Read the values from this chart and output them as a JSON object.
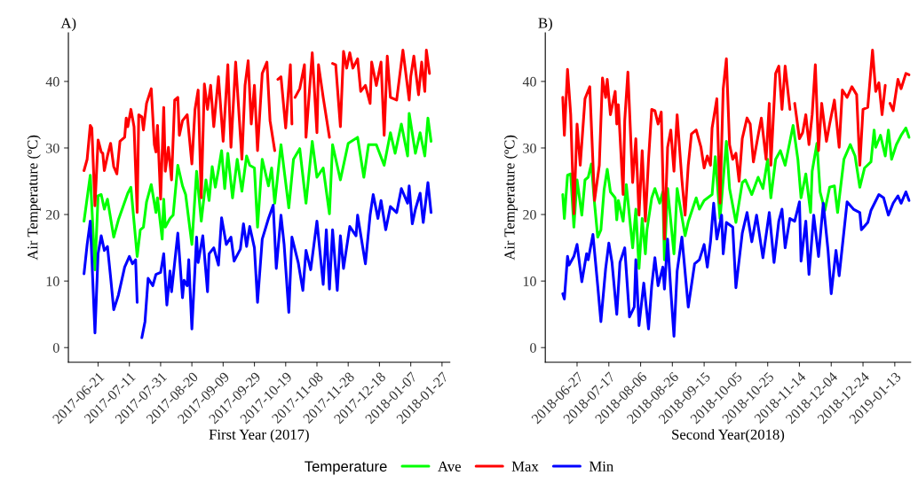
{
  "chart_data": [
    {
      "type": "line",
      "title": "A)",
      "xlabel": "First Year (2017)",
      "ylabel": "Air Temperature (ºC)",
      "xlim": [
        "2017-06-02",
        "2018-02-01"
      ],
      "xticks": [
        "2017-06-21",
        "2017-07-11",
        "2017-07-31",
        "2017-08-20",
        "2017-09-09",
        "2017-09-29",
        "2017-10-19",
        "2017-11-08",
        "2017-11-28",
        "2017-12-18",
        "2018-01-07",
        "2018-01-27"
      ],
      "ylim": [
        -2.2,
        47.3
      ],
      "yticks": [
        0,
        10,
        20,
        30,
        40
      ],
      "grid": false,
      "marker": "none",
      "line_style": "solid",
      "legend": "bottom",
      "legend_title": "Temperature",
      "series": [
        {
          "name": "Ave",
          "color": "#00ff00",
          "x": [
            "2017-06-12",
            "2017-06-16",
            "2017-06-19",
            "2017-06-21",
            "2017-06-23",
            "2017-06-25",
            "2017-06-27",
            "2017-07-01",
            "2017-07-04",
            "2017-07-07",
            "2017-07-10",
            "2017-07-12",
            "2017-07-16",
            "2017-07-18",
            "2017-07-20",
            "2017-07-22",
            "2017-07-25",
            "2017-07-28",
            "2017-07-29",
            "2017-08-01",
            "2017-08-02",
            "2017-08-03",
            "2017-08-06",
            "2017-08-08",
            "2017-08-11",
            "2017-08-14",
            "2017-08-16",
            "2017-08-20",
            "2017-08-23",
            "2017-08-26",
            "2017-08-29",
            "2017-08-31",
            "2017-09-02",
            "2017-09-04",
            "2017-09-06",
            "2017-09-08",
            "2017-09-10",
            "2017-09-12",
            "2017-09-15",
            "2017-09-18",
            "2017-09-21",
            "2017-09-24",
            "2017-09-26",
            "2017-09-29",
            "2017-10-01",
            "2017-10-04",
            "2017-10-08",
            "2017-10-10",
            "2017-10-12",
            "2017-10-16",
            "2017-10-21",
            "2017-10-24",
            "2017-10-28",
            "2017-11-01",
            "2017-11-05",
            "2017-11-08",
            "2017-11-12",
            "2017-11-16",
            "2017-11-18",
            "2017-11-23",
            "2017-11-28",
            "2017-12-04",
            "2017-12-08",
            "2017-12-11",
            "2017-12-16",
            "2017-12-21",
            "2017-12-25",
            "2017-12-28",
            "2018-01-01",
            "2018-01-05",
            "2018-01-06",
            "2018-01-10",
            "2018-01-13",
            "2018-01-16",
            "2018-01-18",
            "2018-01-20"
          ],
          "values": [
            19,
            25.9,
            11.7,
            22.8,
            23,
            20.8,
            22.3,
            16.6,
            19.2,
            21.2,
            23.2,
            24.1,
            13.7,
            17.7,
            18.1,
            21.9,
            24.5,
            20.3,
            22.5,
            16.3,
            22.3,
            18.1,
            19.4,
            19.9,
            27.4,
            24.3,
            23,
            15.5,
            26.5,
            19,
            25.2,
            22.1,
            27.2,
            24.1,
            26.7,
            29.6,
            23.9,
            29.2,
            22.5,
            28.3,
            23.5,
            28.8,
            27.4,
            27,
            18.1,
            28.3,
            24.3,
            27,
            21.7,
            30.5,
            21,
            28.3,
            29.9,
            21.7,
            31,
            25.6,
            27,
            20.1,
            30.5,
            25.2,
            30.7,
            31.6,
            25.6,
            30.5,
            30.5,
            27.4,
            32.3,
            29.2,
            33.6,
            28.8,
            35.2,
            29.2,
            32.3,
            28.8,
            34.5,
            31
          ]
        },
        {
          "name": "Max",
          "color": "#ff0000",
          "x": [
            "2017-06-12",
            "2017-06-14",
            "2017-06-16",
            "2017-06-17",
            "2017-06-19",
            "2017-06-21",
            "2017-06-23",
            "2017-06-24",
            "2017-06-25",
            "2017-06-27",
            "2017-06-29",
            "2017-07-01",
            "2017-07-03",
            "2017-07-05",
            "2017-07-08",
            "2017-07-09",
            "2017-07-10",
            "2017-07-12",
            "2017-07-14",
            "2017-07-16",
            "2017-07-17",
            "2017-07-19",
            "2017-07-20",
            "2017-07-22",
            "2017-07-25",
            "2017-07-27",
            "2017-07-28",
            "2017-07-29",
            "2017-07-31",
            "2017-08-02",
            "2017-08-03",
            "2017-08-05",
            "2017-08-07",
            "2017-08-09",
            "2017-08-11",
            "2017-08-12",
            "2017-08-14",
            "2017-08-17",
            "2017-08-20",
            "2017-08-22",
            "2017-08-24",
            "2017-08-26",
            "2017-08-28",
            "2017-08-30",
            "2017-09-01",
            "2017-09-03",
            "2017-09-06",
            "2017-09-09",
            "2017-09-12",
            "2017-09-14",
            "2017-09-17",
            "2017-09-21",
            "2017-09-23",
            "2017-09-25",
            "2017-09-27",
            "2017-09-29",
            "2017-10-01",
            "2017-10-04",
            "2017-10-07",
            "2017-10-09",
            "2017-10-12",
            "2017-10-13",
            "2017-10-14",
            "2017-10-16",
            "2017-10-19",
            "2017-10-22",
            "2017-10-23",
            "2017-10-24",
            "2017-10-25",
            "2017-10-28",
            "2017-10-31",
            "2017-11-01",
            "2017-11-05",
            "2017-11-08",
            "2017-11-09",
            "2017-11-12",
            "2017-11-16",
            "2017-11-17",
            "2017-11-18",
            "2017-11-20",
            "2017-11-23",
            "2017-11-25",
            "2017-11-27",
            "2017-11-29",
            "2017-12-01",
            "2017-12-04",
            "2017-12-06",
            "2017-12-09",
            "2017-12-12",
            "2017-12-13",
            "2017-12-16",
            "2017-12-19",
            "2017-12-21",
            "2017-12-23",
            "2017-12-25",
            "2017-12-29",
            "2018-01-02",
            "2018-01-06",
            "2018-01-07",
            "2018-01-09",
            "2018-01-12",
            "2018-01-14",
            "2018-01-16",
            "2018-01-17",
            "2018-01-19"
          ],
          "values": [
            26.6,
            28.3,
            33.4,
            33,
            21.3,
            31.2,
            29.4,
            29.2,
            26.6,
            28.8,
            30.7,
            27.2,
            26.1,
            31,
            31.6,
            34.5,
            33.2,
            35.8,
            33.2,
            20.3,
            35,
            34.7,
            32.7,
            36.7,
            38.9,
            30.5,
            29.4,
            33.4,
            22.3,
            36.1,
            26.5,
            30.1,
            25.2,
            37.2,
            37.6,
            31.9,
            34.1,
            35,
            27.6,
            35.8,
            38.7,
            22.5,
            39.6,
            35.8,
            39.4,
            33.2,
            40.7,
            31,
            42.5,
            30.1,
            42.9,
            28.3,
            39.4,
            43.1,
            33.6,
            39.4,
            29.6,
            41.2,
            42.9,
            34.1,
            29.6,
            null,
            40.3,
            40.7,
            33,
            42.5,
            33.6,
            null,
            37.6,
            38.9,
            42.5,
            31.6,
            44.3,
            32.3,
            42.5,
            37.6,
            31.6,
            null,
            42.7,
            42.5,
            33.2,
            44.5,
            42,
            44.3,
            42,
            43.4,
            38.5,
            39.4,
            36.7,
            42.9,
            39.4,
            42.9,
            31.9,
            43.8,
            37.6,
            37.2,
            44.7,
            37.2,
            40.7,
            43.8,
            38,
            42.9,
            38.5,
            44.7,
            41.2
          ]
        },
        {
          "name": "Min",
          "color": "#0000ff",
          "x": [
            "2017-06-12",
            "2017-06-14",
            "2017-06-16",
            "2017-06-19",
            "2017-06-21",
            "2017-06-23",
            "2017-06-25",
            "2017-06-27",
            "2017-06-29",
            "2017-07-01",
            "2017-07-04",
            "2017-07-08",
            "2017-07-11",
            "2017-07-13",
            "2017-07-15",
            "2017-07-16",
            "2017-07-17",
            "2017-07-19",
            "2017-07-21",
            "2017-07-23",
            "2017-07-26",
            "2017-07-28",
            "2017-07-31",
            "2017-08-02",
            "2017-08-04",
            "2017-08-06",
            "2017-08-07",
            "2017-08-09",
            "2017-08-11",
            "2017-08-14",
            "2017-08-15",
            "2017-08-17",
            "2017-08-18",
            "2017-08-20",
            "2017-08-23",
            "2017-08-24",
            "2017-08-27",
            "2017-08-30",
            "2017-08-31",
            "2017-09-03",
            "2017-09-06",
            "2017-09-08",
            "2017-09-11",
            "2017-09-14",
            "2017-09-16",
            "2017-09-20",
            "2017-09-22",
            "2017-09-24",
            "2017-09-26",
            "2017-09-29",
            "2017-10-01",
            "2017-10-04",
            "2017-10-08",
            "2017-10-11",
            "2017-10-13",
            "2017-10-16",
            "2017-10-18",
            "2017-10-21",
            "2017-10-23",
            "2017-10-27",
            "2017-10-30",
            "2017-11-01",
            "2017-11-04",
            "2017-11-08",
            "2017-11-12",
            "2017-11-14",
            "2017-11-16",
            "2017-11-18",
            "2017-11-21",
            "2017-11-23",
            "2017-11-25",
            "2017-11-29",
            "2017-12-03",
            "2017-12-04",
            "2017-12-09",
            "2017-12-12",
            "2017-12-14",
            "2017-12-17",
            "2017-12-19",
            "2017-12-22",
            "2017-12-25",
            "2017-12-29",
            "2018-01-01",
            "2018-01-05",
            "2018-01-06",
            "2018-01-08",
            "2018-01-10",
            "2018-01-13",
            "2018-01-15",
            "2018-01-18",
            "2018-01-20"
          ],
          "values": [
            11.1,
            15.5,
            19,
            2.2,
            14.1,
            16.8,
            14.6,
            15.2,
            10.6,
            5.7,
            7.9,
            12.1,
            13.7,
            12.6,
            13.2,
            6.8,
            null,
            1.5,
            3.9,
            10.4,
            9.3,
            11,
            11.3,
            14.1,
            6.4,
            11.5,
            8.4,
            12.8,
            17.2,
            7.5,
            10.1,
            9.3,
            13.2,
            2.8,
            16.6,
            12.8,
            16.8,
            8.4,
            14.1,
            15,
            12.4,
            19.5,
            15.5,
            16.6,
            13,
            14.8,
            18.6,
            15.2,
            18.2,
            15,
            6.8,
            16.3,
            19.4,
            21.4,
            11.9,
            19.9,
            15.5,
            5.3,
            16.6,
            12.8,
            8.6,
            14.6,
            11.7,
            19,
            9.5,
            17.7,
            8.8,
            17.7,
            8.6,
            16.8,
            11.9,
            18.2,
            16.8,
            19.9,
            12.6,
            19.9,
            23,
            19.4,
            22.1,
            17.7,
            21.2,
            20.3,
            23.9,
            21.7,
            24.3,
            18.6,
            20.8,
            23.2,
            18.8,
            24.8,
            20.3
          ]
        }
      ]
    },
    {
      "type": "line",
      "title": "B)",
      "xlabel": "Second Year(2018)",
      "ylabel": "Air Temperature (ºC)",
      "xlim": [
        "2018-06-07",
        "2019-01-23"
      ],
      "xticks": [
        "2018-06-27",
        "2018-07-17",
        "2018-08-06",
        "2018-08-26",
        "2018-09-15",
        "2018-10-05",
        "2018-10-25",
        "2018-11-14",
        "2018-12-04",
        "2018-12-24",
        "2019-01-13"
      ],
      "ylim": [
        -2.2,
        47.3
      ],
      "yticks": [
        0,
        10,
        20,
        30,
        40
      ],
      "grid": false,
      "marker": "none",
      "line_style": "solid",
      "series": [
        {
          "color": "#00ff00",
          "x": [
            "2018-06-18",
            "2018-06-19",
            "2018-06-21",
            "2018-06-23",
            "2018-06-25",
            "2018-06-27",
            "2018-06-30",
            "2018-07-02",
            "2018-07-04",
            "2018-07-06",
            "2018-07-08",
            "2018-07-10",
            "2018-07-12",
            "2018-07-14",
            "2018-07-16",
            "2018-07-18",
            "2018-07-21",
            "2018-07-22",
            "2018-07-23",
            "2018-07-26",
            "2018-07-28",
            "2018-08-01",
            "2018-08-03",
            "2018-08-05",
            "2018-08-07",
            "2018-08-09",
            "2018-08-10",
            "2018-08-13",
            "2018-08-15",
            "2018-08-18",
            "2018-08-20",
            "2018-08-21",
            "2018-08-23",
            "2018-08-27",
            "2018-08-29",
            "2018-09-03",
            "2018-09-05",
            "2018-09-10",
            "2018-09-12",
            "2018-09-15",
            "2018-09-20",
            "2018-09-22",
            "2018-09-25",
            "2018-09-29",
            "2018-10-01",
            "2018-10-05",
            "2018-10-09",
            "2018-10-11",
            "2018-10-15",
            "2018-10-19",
            "2018-10-22",
            "2018-10-25",
            "2018-10-27",
            "2018-10-30",
            "2018-11-02",
            "2018-11-05",
            "2018-11-10",
            "2018-11-13",
            "2018-11-15",
            "2018-11-18",
            "2018-11-21",
            "2018-11-22",
            "2018-11-25",
            "2018-11-27",
            "2018-11-30",
            "2018-12-03",
            "2018-12-06",
            "2018-12-08",
            "2018-12-12",
            "2018-12-16",
            "2018-12-19",
            "2018-12-22",
            "2018-12-25",
            "2018-12-29",
            "2018-12-31",
            "2019-01-01",
            "2019-01-04",
            "2019-01-07",
            "2019-01-09",
            "2019-01-11",
            "2019-01-14",
            "2019-01-17",
            "2019-01-20",
            "2019-01-22"
          ],
          "values": [
            23,
            19.4,
            25.9,
            26.1,
            18.1,
            25.2,
            19.9,
            25.2,
            25.6,
            27.6,
            21.7,
            16.6,
            17.7,
            23.7,
            26.8,
            23.4,
            22.5,
            19.2,
            22.1,
            19,
            24.5,
            15,
            20.8,
            11.9,
            19.4,
            14.1,
            17.7,
            22.5,
            23.9,
            21.7,
            23.4,
            13.2,
            23.9,
            14.1,
            23.9,
            16.8,
            18.9,
            22.5,
            20.8,
            22.1,
            23,
            28.7,
            19.4,
            31,
            23.9,
            18.8,
            24.8,
            25.2,
            23,
            25.6,
            23.9,
            28.3,
            22.5,
            28.3,
            29.6,
            27.4,
            33.4,
            28.3,
            22.5,
            26.1,
            20.3,
            26.5,
            30.7,
            23.4,
            20.6,
            24.1,
            24.3,
            20.3,
            28.3,
            30.5,
            28.8,
            24.1,
            27,
            27.9,
            32.7,
            30.1,
            31.9,
            28.8,
            32.7,
            28.3,
            30.5,
            31.9,
            33,
            31.6
          ]
        },
        {
          "color": "#ff0000",
          "x": [
            "2018-06-18",
            "2018-06-19",
            "2018-06-21",
            "2018-06-23",
            "2018-06-25",
            "2018-06-27",
            "2018-06-29",
            "2018-07-02",
            "2018-07-05",
            "2018-07-08",
            "2018-07-11",
            "2018-07-13",
            "2018-07-15",
            "2018-07-16",
            "2018-07-18",
            "2018-07-21",
            "2018-07-22",
            "2018-07-23",
            "2018-07-26",
            "2018-07-27",
            "2018-07-29",
            "2018-08-01",
            "2018-08-03",
            "2018-08-05",
            "2018-08-07",
            "2018-08-09",
            "2018-08-11",
            "2018-08-13",
            "2018-08-15",
            "2018-08-17",
            "2018-08-19",
            "2018-08-21",
            "2018-08-23",
            "2018-08-25",
            "2018-08-27",
            "2018-08-29",
            "2018-09-01",
            "2018-09-03",
            "2018-09-05",
            "2018-09-07",
            "2018-09-10",
            "2018-09-13",
            "2018-09-15",
            "2018-09-17",
            "2018-09-19",
            "2018-09-20",
            "2018-09-23",
            "2018-09-25",
            "2018-09-27",
            "2018-09-29",
            "2018-10-01",
            "2018-10-03",
            "2018-10-05",
            "2018-10-07",
            "2018-10-09",
            "2018-10-12",
            "2018-10-14",
            "2018-10-16",
            "2018-10-19",
            "2018-10-21",
            "2018-10-24",
            "2018-10-26",
            "2018-10-27",
            "2018-10-30",
            "2018-11-01",
            "2018-11-03",
            "2018-11-05",
            "2018-11-08",
            "2018-11-09",
            "2018-11-11",
            "2018-11-14",
            "2018-11-16",
            "2018-11-18",
            "2018-11-20",
            "2018-11-22",
            "2018-11-24",
            "2018-11-26",
            "2018-11-28",
            "2018-12-01",
            "2018-12-03",
            "2018-12-06",
            "2018-12-09",
            "2018-12-11",
            "2018-12-14",
            "2018-12-17",
            "2018-12-20",
            "2018-12-22",
            "2018-12-24",
            "2018-12-27",
            "2018-12-30",
            "2019-01-01",
            "2019-01-03",
            "2019-01-05",
            "2019-01-07",
            "2019-01-08",
            "2019-01-10",
            "2019-01-12",
            "2019-01-15",
            "2019-01-17",
            "2019-01-20",
            "2019-01-22"
          ],
          "values": [
            37.6,
            31.9,
            41.8,
            35,
            20.1,
            33.6,
            27.4,
            37.4,
            39.2,
            22.1,
            27.4,
            40.5,
            37.6,
            40.3,
            35,
            38.5,
            33.6,
            36.5,
            23,
            34.1,
            41.4,
            24.8,
            31.4,
            19.9,
            29.6,
            19,
            28.3,
            35.8,
            35.6,
            33.6,
            35.4,
            16.3,
            30.1,
            32.7,
            26.5,
            35,
            25.2,
            19.9,
            27.4,
            32.1,
            32.7,
            30.1,
            27,
            28.8,
            27.4,
            33,
            37.4,
            21.7,
            38.9,
            43.4,
            30.5,
            28.3,
            29.2,
            25,
            31.4,
            34.5,
            33.6,
            27.9,
            31.9,
            34.5,
            28.3,
            36.7,
            27.4,
            41.2,
            42.3,
            35.8,
            42.3,
            35.8,
            null,
            36.7,
            31.4,
            32.3,
            35,
            30.5,
            35,
            42.5,
            29.6,
            36.7,
            31,
            33.6,
            37.2,
            30.1,
            38.7,
            37.6,
            39.2,
            38,
            27.4,
            35.8,
            36.1,
            44.7,
            38.5,
            39.8,
            35,
            39.4,
            null,
            36.7,
            35.6,
            40.3,
            38.9,
            41.2,
            41
          ]
        },
        {
          "color": "#0000ff",
          "x": [
            "2018-06-18",
            "2018-06-19",
            "2018-06-21",
            "2018-06-22",
            "2018-06-25",
            "2018-06-27",
            "2018-06-30",
            "2018-07-03",
            "2018-07-04",
            "2018-07-07",
            "2018-07-10",
            "2018-07-12",
            "2018-07-15",
            "2018-07-17",
            "2018-07-19",
            "2018-07-22",
            "2018-07-24",
            "2018-07-27",
            "2018-07-30",
            "2018-08-02",
            "2018-08-03",
            "2018-08-05",
            "2018-08-08",
            "2018-08-11",
            "2018-08-13",
            "2018-08-15",
            "2018-08-17",
            "2018-08-20",
            "2018-08-21",
            "2018-08-23",
            "2018-08-25",
            "2018-08-27",
            "2018-08-29",
            "2018-09-01",
            "2018-09-05",
            "2018-09-09",
            "2018-09-12",
            "2018-09-15",
            "2018-09-17",
            "2018-09-19",
            "2018-09-21",
            "2018-09-23",
            "2018-09-26",
            "2018-09-27",
            "2018-09-29",
            "2018-10-03",
            "2018-10-05",
            "2018-10-09",
            "2018-10-12",
            "2018-10-15",
            "2018-10-18",
            "2018-10-22",
            "2018-10-26",
            "2018-10-29",
            "2018-11-01",
            "2018-11-03",
            "2018-11-05",
            "2018-11-08",
            "2018-11-11",
            "2018-11-14",
            "2018-11-15",
            "2018-11-18",
            "2018-11-20",
            "2018-11-23",
            "2018-11-26",
            "2018-11-29",
            "2018-12-02",
            "2018-12-04",
            "2018-12-07",
            "2018-12-09",
            "2018-12-14",
            "2018-12-18",
            "2018-12-22",
            "2018-12-23",
            "2018-12-27",
            "2018-12-29",
            "2019-01-03",
            "2019-01-06",
            "2019-01-09",
            "2019-01-12",
            "2019-01-15",
            "2019-01-17",
            "2019-01-20",
            "2019-01-22"
          ],
          "values": [
            8.1,
            7.3,
            13.7,
            12.4,
            13.7,
            15.5,
            9.9,
            14.1,
            13.2,
            17,
            9.3,
            3.9,
            11.9,
            15.7,
            12.8,
            5,
            12.8,
            15,
            4.6,
            6.1,
            13.2,
            3.3,
            9.7,
            2.8,
            9.3,
            13.5,
            9.3,
            12.1,
            8.8,
            16.3,
            8.6,
            1.7,
            11.5,
            16.6,
            6.1,
            12.6,
            13.2,
            15.5,
            12.1,
            15.9,
            21.7,
            16.3,
            19.9,
            14.1,
            18.8,
            18.1,
            9,
            17.2,
            20.3,
            15.9,
            19.9,
            13.5,
            20.3,
            12.8,
            19,
            20.8,
            15,
            19.4,
            19,
            21.9,
            13,
            19,
            11,
            19.9,
            13.7,
            21.7,
            14.6,
            8.1,
            14.6,
            10.8,
            21.9,
            20.8,
            20.3,
            17.7,
            18.8,
            20.6,
            23,
            22.5,
            19.9,
            21.7,
            22.8,
            21.7,
            23.4,
            22.1
          ]
        }
      ]
    }
  ]
}
